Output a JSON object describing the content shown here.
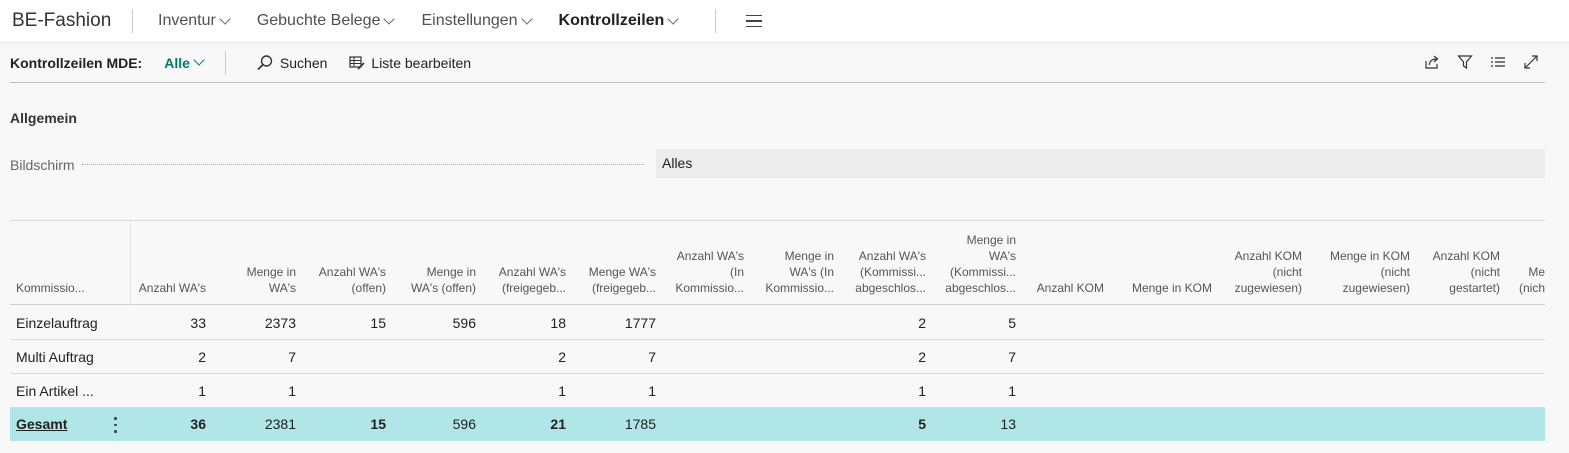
{
  "app": {
    "title": "BE-Fashion"
  },
  "nav": [
    {
      "label": "Inventur"
    },
    {
      "label": "Gebuchte Belege"
    },
    {
      "label": "Einstellungen"
    },
    {
      "label": "Kontrollzeilen"
    }
  ],
  "actionbar": {
    "page_label": "Kontrollzeilen MDE:",
    "filter_value": "Alle",
    "search_label": "Suchen",
    "edit_list_label": "Liste bearbeiten"
  },
  "general": {
    "section_title": "Allgemein",
    "screen_label": "Bildschirm",
    "screen_value": "Alles"
  },
  "grid": {
    "headers": [
      "Kommissio...",
      "Anzahl WA's",
      "Menge in\nWA's",
      "Anzahl WA's\n(offen)",
      "Menge in\nWA's (offen)",
      "Anzahl WA's\n(freigegeb...",
      "Menge WA's\n(freigegeb...",
      "Anzahl WA's\n(In\nKommissio...",
      "Menge in\nWA's (In\nKommissio...",
      "Anzahl WA's\n(Kommissi...\nabgeschlos...",
      "Menge in\nWA's\n(Kommissi...\nabgeschlos...",
      "Anzahl KOM",
      "Menge in KOM",
      "Anzahl KOM\n(nicht\nzugewiesen)",
      "Menge in KOM\n(nicht\nzugewiesen)",
      "Anzahl KOM\n(nicht\ngestartet)",
      "Me\n(nich"
    ],
    "rows": [
      {
        "name": "Einzelauftrag",
        "values": [
          "33",
          "2373",
          "15",
          "596",
          "18",
          "1777",
          "",
          "",
          "2",
          "5",
          "",
          "",
          "",
          "",
          "",
          ""
        ]
      },
      {
        "name": "Multi Auftrag",
        "values": [
          "2",
          "7",
          "",
          "",
          "2",
          "7",
          "",
          "",
          "2",
          "7",
          "",
          "",
          "",
          "",
          "",
          ""
        ]
      },
      {
        "name": "Ein Artikel ...",
        "values": [
          "1",
          "1",
          "",
          "",
          "1",
          "1",
          "",
          "",
          "1",
          "1",
          "",
          "",
          "",
          "",
          "",
          ""
        ]
      }
    ],
    "total": {
      "name": "Gesamt",
      "values": [
        "36",
        "2381",
        "15",
        "596",
        "21",
        "1785",
        "",
        "",
        "5",
        "13",
        "",
        "",
        "",
        "",
        "",
        ""
      ]
    }
  },
  "colors": {
    "accent": "#00786e",
    "total_row_bg": "#b0e6e8"
  }
}
